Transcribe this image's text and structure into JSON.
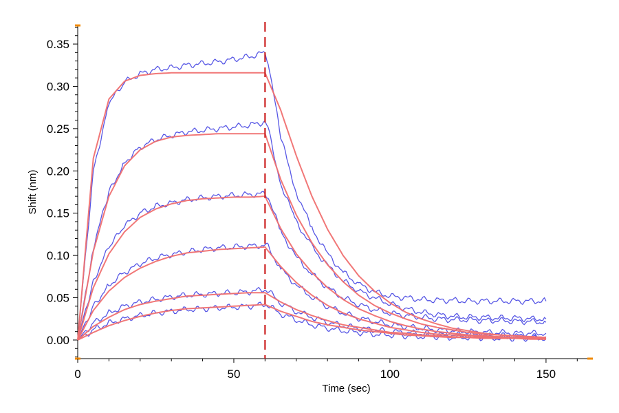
{
  "chart_data": {
    "type": "line",
    "title": "",
    "xlabel": "Time (sec)",
    "ylabel": "Shift (nm)",
    "xlim": [
      0,
      165
    ],
    "ylim": [
      -0.022,
      0.372
    ],
    "x_ticks": [
      0,
      50,
      100,
      150
    ],
    "x_tick_labels": [
      "0",
      "50",
      "100",
      "150"
    ],
    "y_ticks": [
      0.0,
      0.05,
      0.1,
      0.15,
      0.2,
      0.25,
      0.3,
      0.35
    ],
    "y_tick_labels": [
      "0.00",
      "0.05",
      "0.10",
      "0.15",
      "0.20",
      "0.25",
      "0.30",
      "0.35"
    ],
    "grid": false,
    "legend": "none",
    "association_end_marker_x": 60,
    "colors": {
      "measured": "#3a3ae0",
      "fit": "#f07070",
      "marker": "#cc2222",
      "axis_end_marker": "#f08a00"
    },
    "series": [
      {
        "kind": "measured",
        "x": [
          0,
          5,
          10,
          15,
          20,
          25,
          30,
          35,
          40,
          45,
          50,
          55,
          60,
          61,
          65,
          70,
          75,
          80,
          85,
          90,
          95,
          100,
          105,
          110,
          115,
          120,
          125,
          130,
          135,
          140,
          145,
          150
        ],
        "values": [
          0,
          0.2,
          0.28,
          0.305,
          0.315,
          0.32,
          0.322,
          0.325,
          0.327,
          0.329,
          0.332,
          0.335,
          0.34,
          0.33,
          0.24,
          0.175,
          0.132,
          0.102,
          0.08,
          0.066,
          0.057,
          0.052,
          0.05,
          0.048,
          0.047,
          0.047,
          0.046,
          0.046,
          0.046,
          0.046,
          0.046,
          0.046
        ]
      },
      {
        "kind": "measured",
        "x": [
          0,
          5,
          10,
          15,
          20,
          25,
          30,
          35,
          40,
          45,
          50,
          55,
          60,
          61,
          65,
          70,
          75,
          80,
          85,
          90,
          95,
          100,
          105,
          110,
          115,
          120,
          125,
          130,
          135,
          140,
          145,
          150
        ],
        "values": [
          0,
          0.11,
          0.175,
          0.21,
          0.228,
          0.237,
          0.242,
          0.246,
          0.248,
          0.25,
          0.252,
          0.254,
          0.258,
          0.25,
          0.185,
          0.14,
          0.11,
          0.088,
          0.07,
          0.058,
          0.05,
          0.043,
          0.037,
          0.033,
          0.03,
          0.028,
          0.027,
          0.027,
          0.026,
          0.026,
          0.025,
          0.025
        ]
      },
      {
        "kind": "measured",
        "x": [
          0,
          5,
          10,
          15,
          20,
          25,
          30,
          35,
          40,
          45,
          50,
          55,
          60,
          61,
          65,
          70,
          75,
          80,
          85,
          90,
          95,
          100,
          105,
          110,
          115,
          120,
          125,
          130,
          135,
          140,
          145,
          150
        ],
        "values": [
          0,
          0.07,
          0.11,
          0.135,
          0.15,
          0.158,
          0.162,
          0.166,
          0.168,
          0.17,
          0.171,
          0.172,
          0.173,
          0.17,
          0.128,
          0.098,
          0.078,
          0.062,
          0.05,
          0.042,
          0.036,
          0.032,
          0.029,
          0.027,
          0.025,
          0.024,
          0.024,
          0.023,
          0.023,
          0.022,
          0.022,
          0.021
        ]
      },
      {
        "kind": "measured",
        "x": [
          0,
          5,
          10,
          15,
          20,
          25,
          30,
          35,
          40,
          45,
          50,
          55,
          60,
          61,
          65,
          70,
          75,
          80,
          85,
          90,
          95,
          100,
          105,
          110,
          115,
          120,
          125,
          130,
          135,
          140,
          145,
          150
        ],
        "values": [
          0,
          0.04,
          0.065,
          0.08,
          0.09,
          0.097,
          0.101,
          0.104,
          0.107,
          0.109,
          0.11,
          0.111,
          0.112,
          0.11,
          0.084,
          0.065,
          0.051,
          0.04,
          0.032,
          0.026,
          0.022,
          0.018,
          0.016,
          0.014,
          0.012,
          0.011,
          0.01,
          0.009,
          0.009,
          0.008,
          0.008,
          0.008
        ]
      },
      {
        "kind": "measured",
        "x": [
          0,
          5,
          10,
          15,
          20,
          25,
          30,
          35,
          40,
          45,
          50,
          55,
          60,
          61,
          65,
          70,
          75,
          80,
          85,
          90,
          95,
          100,
          105,
          110,
          115,
          120,
          125,
          130,
          135,
          140,
          145,
          150
        ],
        "values": [
          0,
          0.02,
          0.032,
          0.04,
          0.045,
          0.048,
          0.051,
          0.053,
          0.054,
          0.055,
          0.056,
          0.057,
          0.06,
          0.058,
          0.044,
          0.034,
          0.027,
          0.021,
          0.017,
          0.014,
          0.012,
          0.01,
          0.009,
          0.008,
          0.007,
          0.006,
          0.006,
          0.005,
          0.005,
          0.005,
          0.004,
          0.004
        ]
      },
      {
        "kind": "measured",
        "x": [
          0,
          5,
          10,
          15,
          20,
          25,
          30,
          35,
          40,
          45,
          50,
          55,
          60,
          61,
          65,
          70,
          75,
          80,
          85,
          90,
          95,
          100,
          105,
          110,
          115,
          120,
          125,
          130,
          135,
          140,
          145,
          150
        ],
        "values": [
          0,
          0.012,
          0.02,
          0.025,
          0.029,
          0.032,
          0.034,
          0.036,
          0.037,
          0.038,
          0.039,
          0.04,
          0.042,
          0.041,
          0.031,
          0.024,
          0.018,
          0.014,
          0.011,
          0.009,
          0.007,
          0.006,
          0.005,
          0.004,
          0.004,
          0.003,
          0.003,
          0.003,
          0.002,
          0.002,
          0.002,
          0.002
        ]
      },
      {
        "kind": "fit",
        "x": [
          0,
          5,
          10,
          15,
          20,
          25,
          30,
          35,
          40,
          45,
          50,
          55,
          60,
          65,
          70,
          75,
          80,
          85,
          90,
          95,
          100,
          105,
          110,
          115,
          120,
          125,
          130,
          135,
          140,
          145,
          150
        ],
        "values": [
          0,
          0.215,
          0.285,
          0.306,
          0.313,
          0.315,
          0.316,
          0.316,
          0.316,
          0.316,
          0.316,
          0.316,
          0.316,
          0.272,
          0.218,
          0.17,
          0.131,
          0.1,
          0.076,
          0.058,
          0.044,
          0.033,
          0.025,
          0.019,
          0.014,
          0.011,
          0.008,
          0.006,
          0.005,
          0.004,
          0.003
        ]
      },
      {
        "kind": "fit",
        "x": [
          0,
          5,
          10,
          15,
          20,
          25,
          30,
          35,
          40,
          45,
          50,
          55,
          60,
          65,
          70,
          75,
          80,
          85,
          90,
          95,
          100,
          105,
          110,
          115,
          120,
          125,
          130,
          135,
          140,
          145,
          150
        ],
        "values": [
          0,
          0.105,
          0.17,
          0.206,
          0.225,
          0.235,
          0.24,
          0.242,
          0.243,
          0.244,
          0.244,
          0.244,
          0.244,
          0.19,
          0.148,
          0.115,
          0.089,
          0.069,
          0.053,
          0.041,
          0.032,
          0.025,
          0.019,
          0.015,
          0.012,
          0.009,
          0.007,
          0.006,
          0.005,
          0.004,
          0.003
        ]
      },
      {
        "kind": "fit",
        "x": [
          0,
          5,
          10,
          15,
          20,
          25,
          30,
          35,
          40,
          45,
          50,
          55,
          60,
          65,
          70,
          75,
          80,
          85,
          90,
          95,
          100,
          105,
          110,
          115,
          120,
          125,
          130,
          135,
          140,
          145,
          150
        ],
        "values": [
          0,
          0.062,
          0.102,
          0.128,
          0.145,
          0.155,
          0.161,
          0.165,
          0.167,
          0.168,
          0.169,
          0.169,
          0.17,
          0.132,
          0.102,
          0.08,
          0.062,
          0.048,
          0.037,
          0.029,
          0.022,
          0.017,
          0.013,
          0.01,
          0.008,
          0.006,
          0.005,
          0.004,
          0.003,
          0.003,
          0.002
        ]
      },
      {
        "kind": "fit",
        "x": [
          0,
          5,
          10,
          15,
          20,
          25,
          30,
          35,
          40,
          45,
          50,
          55,
          60,
          65,
          70,
          75,
          80,
          85,
          90,
          95,
          100,
          105,
          110,
          115,
          120,
          125,
          130,
          135,
          140,
          145,
          150
        ],
        "values": [
          0,
          0.035,
          0.058,
          0.074,
          0.085,
          0.093,
          0.099,
          0.103,
          0.105,
          0.107,
          0.108,
          0.109,
          0.11,
          0.087,
          0.068,
          0.053,
          0.041,
          0.032,
          0.025,
          0.02,
          0.015,
          0.012,
          0.009,
          0.007,
          0.006,
          0.005,
          0.004,
          0.003,
          0.002,
          0.002,
          0.002
        ]
      },
      {
        "kind": "fit",
        "x": [
          0,
          5,
          10,
          15,
          20,
          25,
          30,
          35,
          40,
          45,
          50,
          55,
          60,
          65,
          70,
          75,
          80,
          85,
          90,
          95,
          100,
          105,
          110,
          115,
          120,
          125,
          130,
          135,
          140,
          145,
          150
        ],
        "values": [
          0,
          0.016,
          0.027,
          0.036,
          0.042,
          0.046,
          0.049,
          0.052,
          0.053,
          0.054,
          0.055,
          0.056,
          0.056,
          0.045,
          0.036,
          0.029,
          0.023,
          0.018,
          0.015,
          0.012,
          0.009,
          0.008,
          0.006,
          0.005,
          0.004,
          0.003,
          0.003,
          0.002,
          0.002,
          0.002,
          0.001
        ]
      },
      {
        "kind": "fit",
        "x": [
          0,
          5,
          10,
          15,
          20,
          25,
          30,
          35,
          40,
          45,
          50,
          55,
          60,
          65,
          70,
          75,
          80,
          85,
          90,
          95,
          100,
          105,
          110,
          115,
          120,
          125,
          130,
          135,
          140,
          145,
          150
        ],
        "values": [
          0,
          0.009,
          0.017,
          0.023,
          0.028,
          0.032,
          0.035,
          0.037,
          0.038,
          0.039,
          0.04,
          0.041,
          0.042,
          0.034,
          0.028,
          0.022,
          0.018,
          0.015,
          0.012,
          0.01,
          0.008,
          0.006,
          0.005,
          0.004,
          0.003,
          0.003,
          0.002,
          0.002,
          0.002,
          0.001,
          0.001
        ]
      }
    ]
  }
}
